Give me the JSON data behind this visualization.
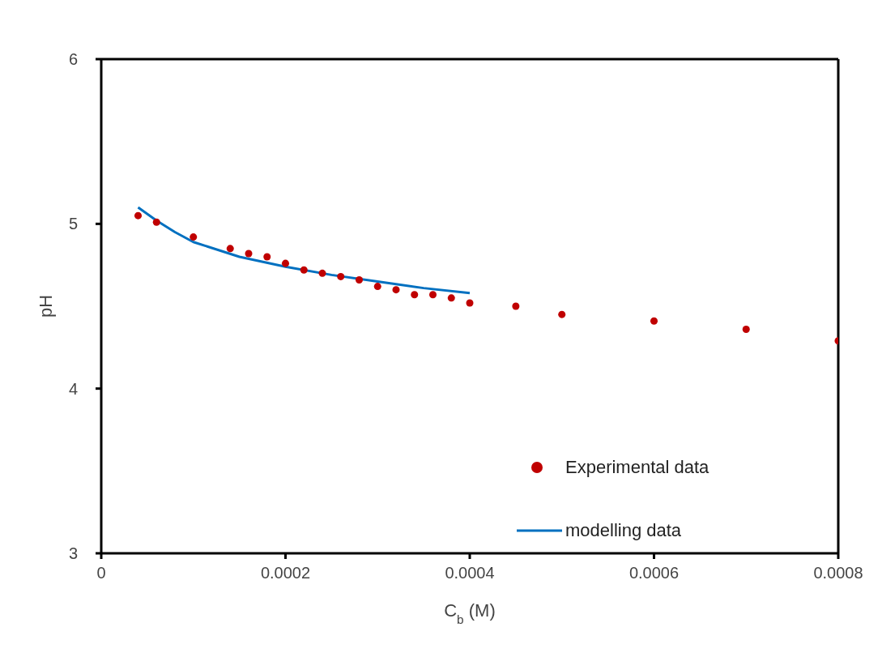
{
  "chart_data": {
    "type": "scatter",
    "xlabel": "C$_{b}$ (M)",
    "ylabel": "pH",
    "xlim": [
      0,
      0.0008
    ],
    "xticks": [
      0,
      0.0002,
      0.0004,
      0.0006,
      0.0008
    ],
    "ylim": [
      3,
      6
    ],
    "yticks": [
      3,
      4,
      5,
      6
    ],
    "grid": false,
    "legend": "bottom right",
    "series": [
      {
        "name": "Experimental data",
        "color": "#c00000",
        "marker": "circle",
        "x": [
          4e-05,
          6e-05,
          0.0001,
          0.00014,
          0.00016,
          0.00018,
          0.0002,
          0.00022,
          0.00024,
          0.00026,
          0.00028,
          0.0003,
          0.00032,
          0.00034,
          0.00036,
          0.00038,
          0.0004,
          0.00045,
          0.0005,
          0.0006,
          0.0007,
          0.0008
        ],
        "values": [
          5.05,
          5.01,
          4.92,
          4.85,
          4.82,
          4.8,
          4.76,
          4.72,
          4.7,
          4.68,
          4.66,
          4.62,
          4.6,
          4.57,
          4.57,
          4.55,
          4.52,
          4.5,
          4.45,
          4.41,
          4.36,
          4.29
        ]
      },
      {
        "name": "modelling data",
        "type": "line",
        "color": "#0070c0",
        "marker": "none",
        "line_style": "solid",
        "x": [
          4e-05,
          6e-05,
          8e-05,
          0.0001,
          0.00015,
          0.0002,
          0.00025,
          0.0003,
          0.00035,
          0.0004
        ],
        "values": [
          5.1,
          5.02,
          4.95,
          4.89,
          4.8,
          4.74,
          4.69,
          4.65,
          4.61,
          4.58
        ]
      }
    ]
  }
}
